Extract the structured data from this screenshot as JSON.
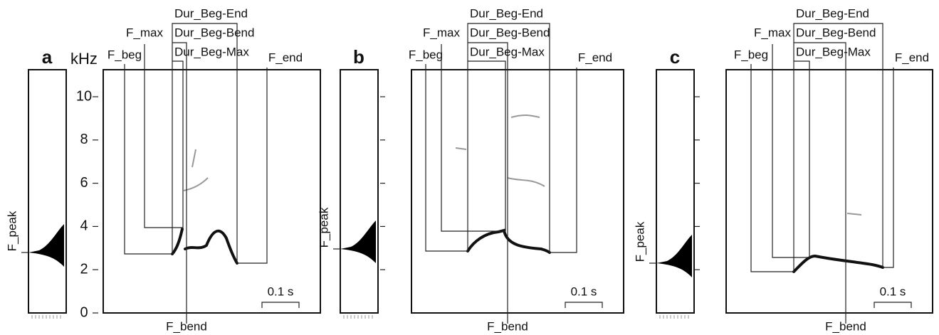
{
  "axis": {
    "unit": "kHz",
    "ticks": [
      0,
      2,
      4,
      6,
      8,
      10
    ]
  },
  "panels": [
    {
      "label": "a",
      "f_max": "F_max",
      "f_beg": "F_beg",
      "dur_beg_end": "Dur_Beg-End",
      "dur_beg_bend": "Dur_Beg-Bend",
      "dur_beg_max": "Dur_Beg-Max",
      "f_end": "F_end",
      "f_peak": "F_peak",
      "f_bend": "F_bend",
      "scale": "0.1 s"
    },
    {
      "label": "b",
      "f_max": "F_max",
      "f_beg": "F_beg",
      "dur_beg_end": "Dur_Beg-End",
      "dur_beg_bend": "Dur_Beg-Bend",
      "dur_beg_max": "Dur_Beg-Max",
      "f_end": "F_end",
      "f_peak": "F_peak",
      "f_bend": "F_bend",
      "scale": "0.1 s"
    },
    {
      "label": "c",
      "f_max": "F_max",
      "f_beg": "F_beg",
      "dur_beg_end": "Dur_Beg-End",
      "dur_beg_bend": "Dur_Beg-Bend",
      "dur_beg_max": "Dur_Beg-Max",
      "f_end": "F_end",
      "f_peak": "F_peak",
      "f_bend": "F_bend",
      "scale": "0.1 s"
    }
  ]
}
